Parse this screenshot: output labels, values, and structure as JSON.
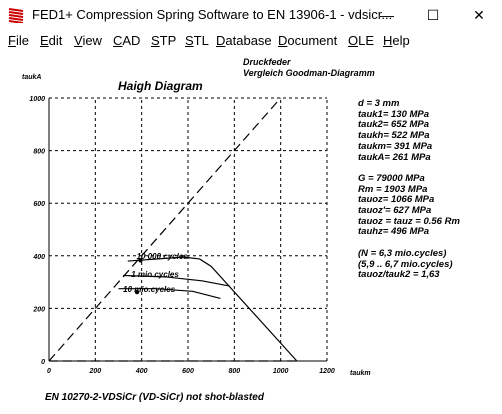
{
  "window": {
    "title": "FED1+  Compression Spring Software to EN 13906-1  -  vdsicr...",
    "minimize_glyph": "—",
    "maximize_glyph": "☐",
    "close_glyph": "✕"
  },
  "menu": [
    {
      "label": "File",
      "ul": "F",
      "rest": "ile"
    },
    {
      "label": "Edit",
      "ul": "E",
      "rest": "dit"
    },
    {
      "label": "View",
      "ul": "V",
      "rest": "iew"
    },
    {
      "label": "CAD",
      "ul": "C",
      "rest": "AD"
    },
    {
      "label": "STP",
      "ul": "S",
      "rest": "TP"
    },
    {
      "label": "STL",
      "ul": "S",
      "rest": "TL"
    },
    {
      "label": "Database",
      "ul": "D",
      "rest": "atabase"
    },
    {
      "label": "Document",
      "ul": "D",
      "rest": "ocument"
    },
    {
      "label": "OLE",
      "ul": "O",
      "rest": "LE"
    },
    {
      "label": "Help",
      "ul": "H",
      "rest": "elp"
    }
  ],
  "header": {
    "line1": "Druckfeder",
    "line2": "Vergleich Goodman-Diagramm"
  },
  "chart_title": "Haigh Diagram",
  "params": [
    "d  = 3 mm",
    "tauk1=  130 MPa",
    "tauk2=  652 MPa",
    "taukh=  522 MPa",
    "taukm=  391 MPa",
    "taukA=   261 MPa",
    "",
    "G  =  79000 MPa",
    "Rm  =  1903 MPa",
    "tauoz= 1066 MPa",
    "tauoz'=  627 MPa",
    "tauoz = tauz = 0.56 Rm",
    "tauhz=  496 MPa",
    "",
    "(N = 6,3 mio.cycles)",
    "(5,9 .. 6,7 mio.cycles)",
    "tauoz/tauk2 = 1,63"
  ],
  "footer": "EN 10270-2-VDSiCr (VD-SiCr) not shot-blasted",
  "chart_data": {
    "type": "line",
    "xlabel": "taukm",
    "ylabel": "taukA",
    "xlim": [
      0,
      1200
    ],
    "ylim": [
      0,
      1000
    ],
    "xticks": [
      0,
      200,
      400,
      600,
      800,
      1000,
      1200
    ],
    "yticks": [
      0,
      200,
      400,
      600,
      800,
      1000
    ],
    "grid": true,
    "series": [
      {
        "name": "10 000 cycles",
        "label": "10 000 cycles",
        "x": [
          340,
          580,
          650,
          700,
          1070
        ],
        "y": [
          380,
          395,
          388,
          360,
          0
        ],
        "label_at": [
          378,
          388
        ]
      },
      {
        "name": "1 mio.cycles",
        "label": "1 mio.cycles",
        "x": [
          320,
          500,
          660,
          780
        ],
        "y": [
          325,
          320,
          305,
          285
        ],
        "label_at": [
          355,
          320
        ]
      },
      {
        "name": "10 mio.cycles",
        "label": "10 mio.cycles",
        "x": [
          300,
          460,
          620,
          740
        ],
        "y": [
          275,
          275,
          265,
          238
        ],
        "label_at": [
          320,
          262
        ]
      },
      {
        "name": "tauoz line",
        "style": "dash",
        "x": [
          0,
          1000
        ],
        "y": [
          0,
          1000
        ]
      },
      {
        "name": "tauoz max",
        "style": "dash",
        "x": [
          0,
          1066
        ],
        "y": [
          0,
          0
        ]
      }
    ],
    "dots": [
      {
        "x": 395,
        "y": 383
      },
      {
        "x": 380,
        "y": 262
      }
    ]
  }
}
